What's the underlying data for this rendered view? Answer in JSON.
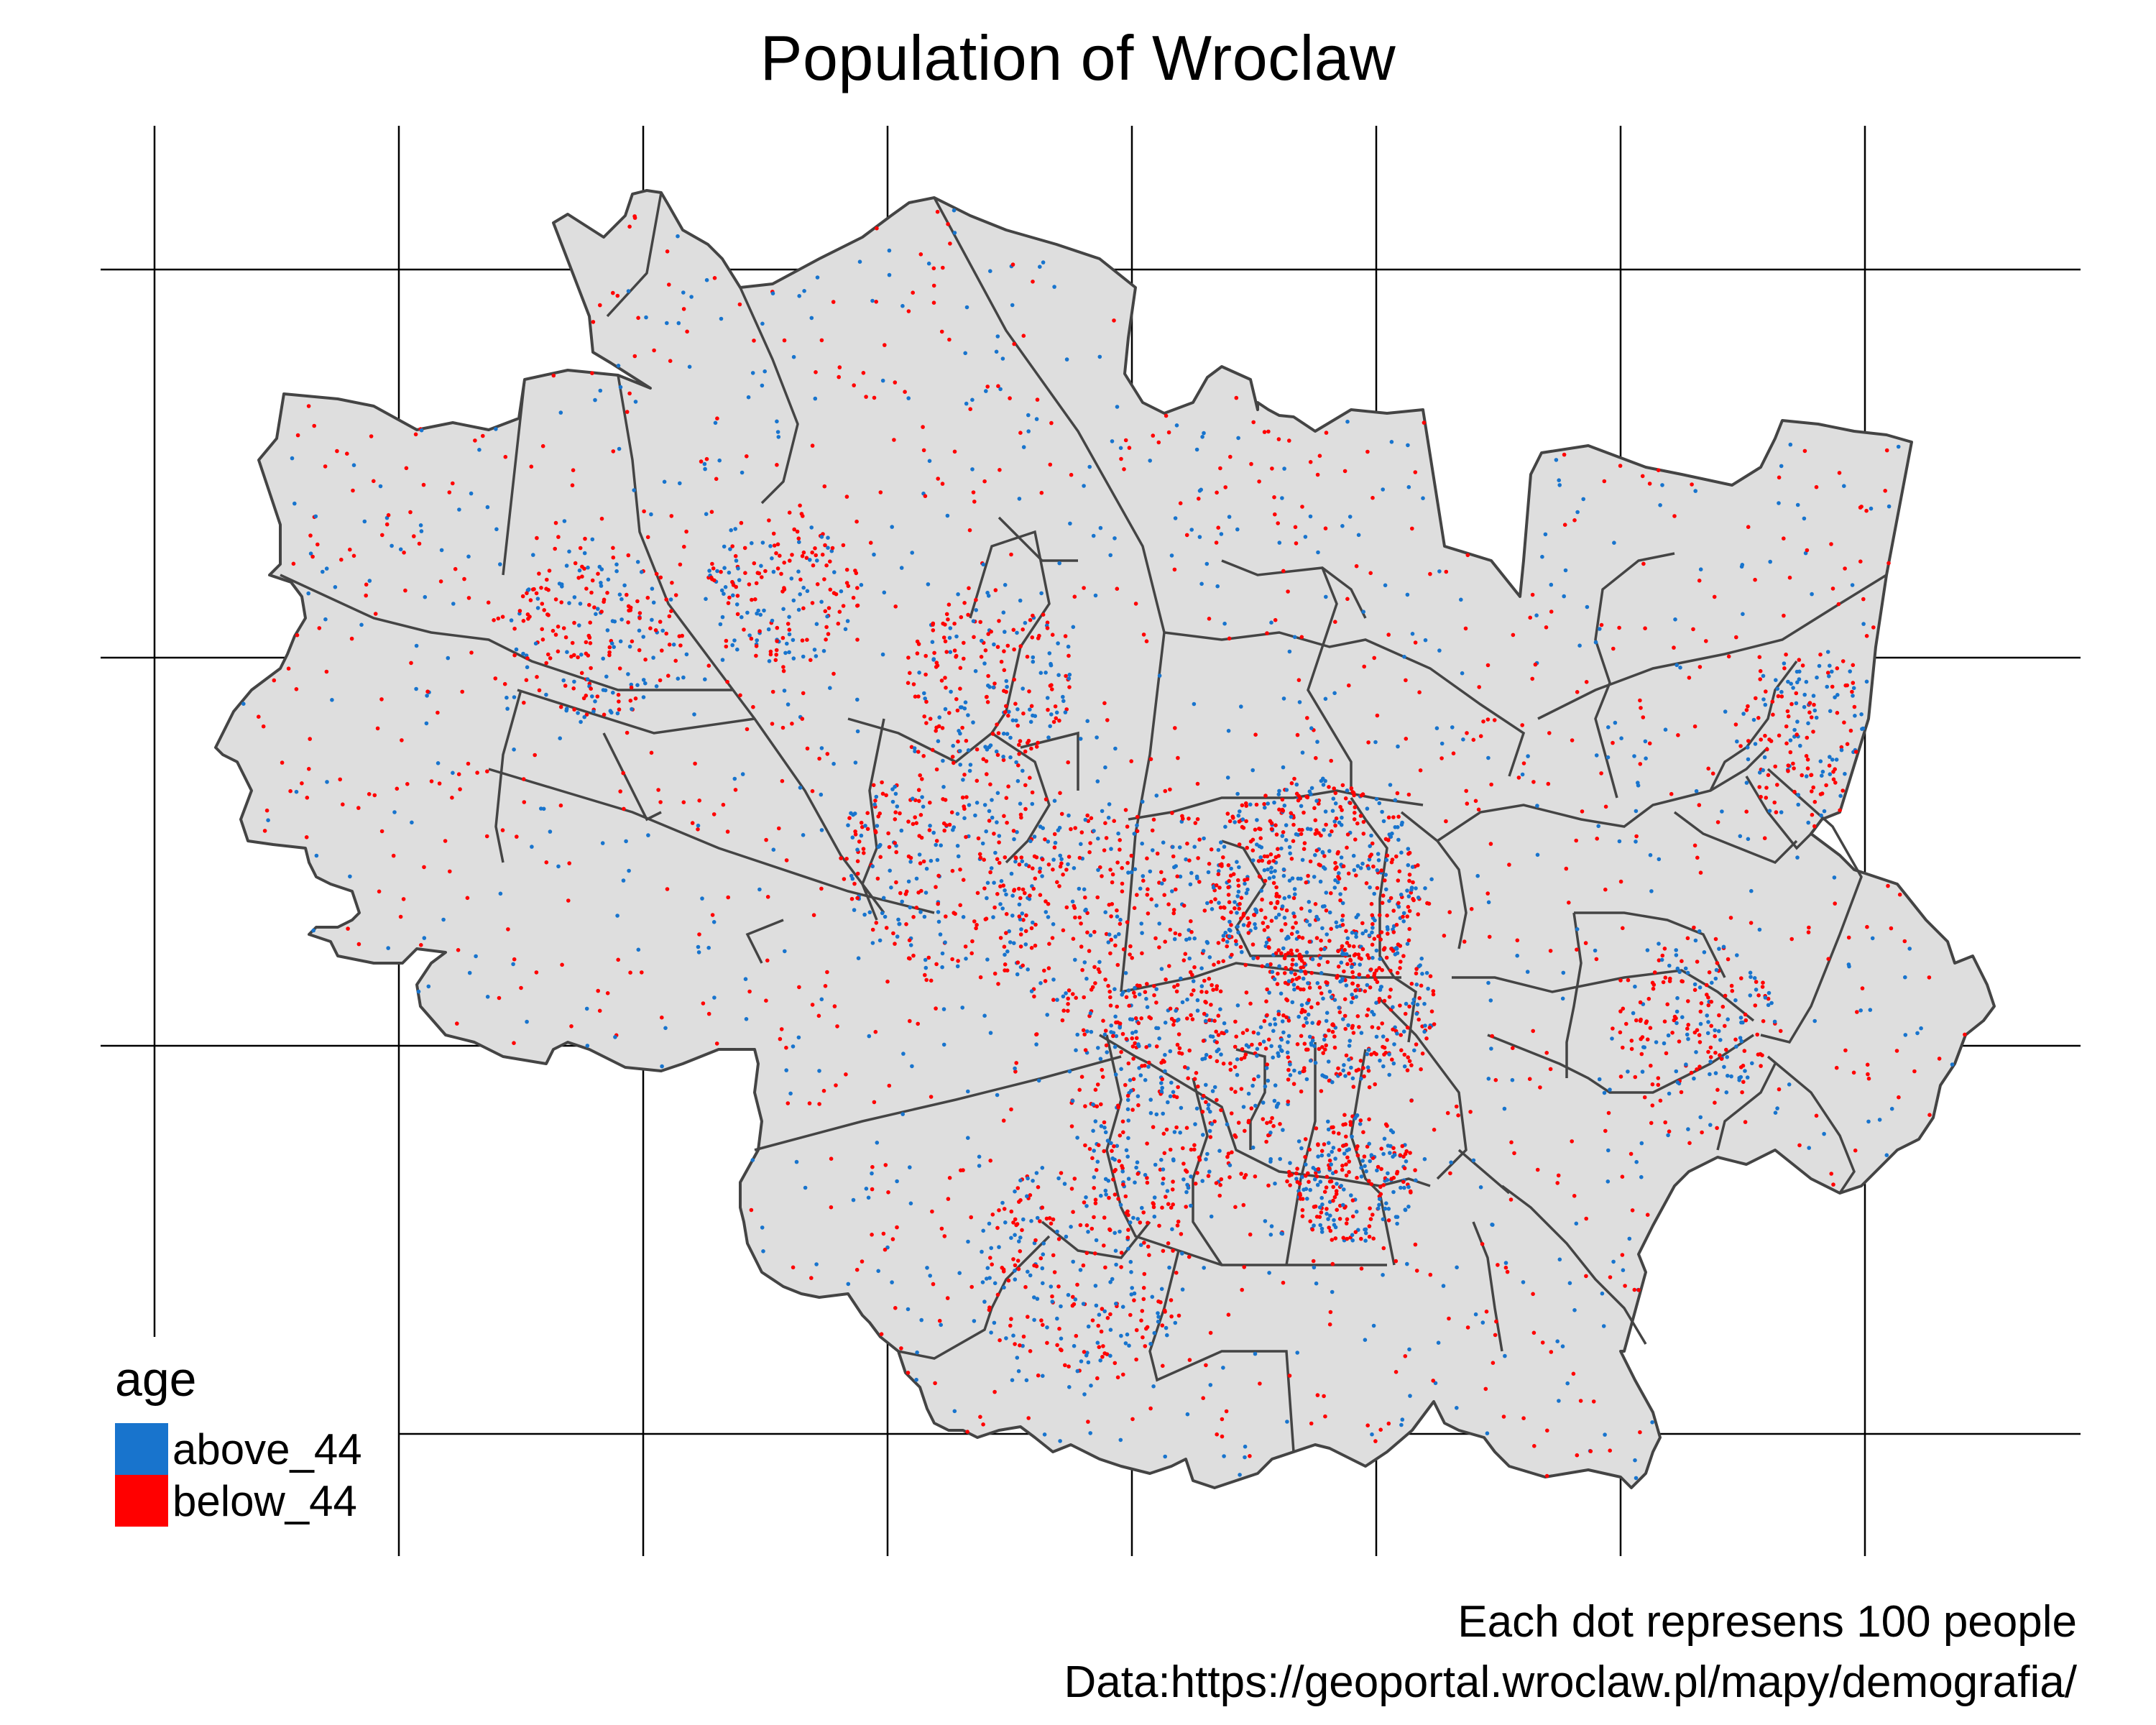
{
  "title": "Population of Wroclaw",
  "legend": {
    "title": "age",
    "items": [
      {
        "label": "above_44",
        "color": "#1874CD"
      },
      {
        "label": "below_44",
        "color": "#FF0000"
      }
    ]
  },
  "caption": {
    "line1": "Each dot represens 100 people",
    "line2": "Data:https://geoportal.wroclaw.pl/mapy/demografia/"
  },
  "map_style": {
    "district_fill": "#DEDEDE",
    "district_stroke": "#444444",
    "graticule_color": "#000000",
    "background": "#FFFFFF"
  },
  "chart_data": {
    "type": "dot-density-map",
    "unit_per_dot": 100,
    "categories": [
      "above_44",
      "below_44"
    ],
    "grid": true,
    "legend_position": "bottom-left"
  }
}
